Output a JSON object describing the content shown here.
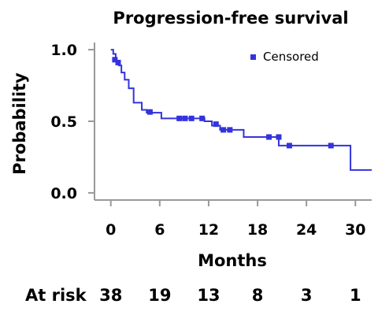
{
  "chart_data": {
    "type": "line",
    "title": "Progression-free survival",
    "xlabel": "Months",
    "ylabel": "Probability",
    "xlim": [
      -2,
      32
    ],
    "ylim": [
      -0.05,
      1.05
    ],
    "x_ticks": [
      0,
      6,
      12,
      18,
      24,
      30
    ],
    "y_ticks": [
      {
        "value": 0.0,
        "label": "0.0"
      },
      {
        "value": 0.5,
        "label": "0.5"
      },
      {
        "value": 1.0,
        "label": "1.0"
      }
    ],
    "grid": false,
    "legend": {
      "placement": "top-right",
      "entries": [
        "Censored"
      ]
    },
    "series_color": "#3333dd",
    "curve": {
      "x": [
        0,
        0.3,
        0.6,
        1.0,
        1.3,
        1.7,
        2.2,
        2.8,
        3.8,
        4.4,
        6.2,
        11.5,
        12.4,
        13.4,
        16.3,
        20.6,
        29.4,
        32
      ],
      "y": [
        1.0,
        0.97,
        0.92,
        0.89,
        0.84,
        0.79,
        0.73,
        0.63,
        0.58,
        0.56,
        0.52,
        0.5,
        0.47,
        0.44,
        0.39,
        0.33,
        0.16,
        0.16
      ]
    },
    "censored": {
      "x": [
        0.5,
        0.9,
        4.8,
        8.4,
        9.1,
        9.9,
        11.2,
        12.9,
        13.8,
        14.6,
        19.4,
        20.6,
        21.9,
        27.0
      ],
      "y": [
        0.93,
        0.91,
        0.565,
        0.52,
        0.52,
        0.52,
        0.52,
        0.48,
        0.44,
        0.44,
        0.39,
        0.39,
        0.33,
        0.33
      ]
    },
    "at_risk": {
      "label": "At risk",
      "times": [
        0,
        6,
        12,
        18,
        24,
        30
      ],
      "counts": [
        "38",
        "19",
        "13",
        "8",
        "3",
        "1"
      ]
    }
  }
}
